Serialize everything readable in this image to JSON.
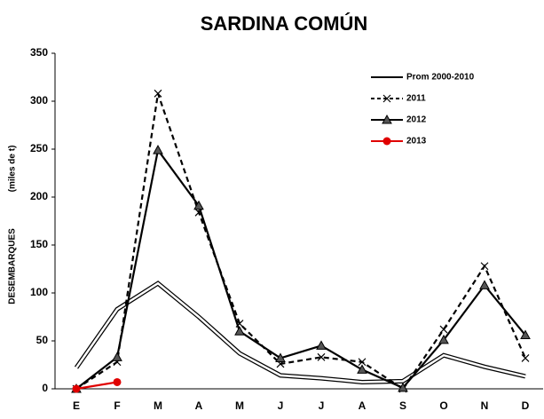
{
  "chart_data": {
    "type": "line",
    "title": "SARDINA COMÚN",
    "ylabel": "DESEMBARQUES",
    "ylabel_unit": "(miles de t)",
    "categories": [
      "E",
      "F",
      "M",
      "A",
      "M",
      "J",
      "J",
      "A",
      "S",
      "O",
      "N",
      "D"
    ],
    "ylim": [
      0,
      350
    ],
    "yticks": [
      0,
      50,
      100,
      150,
      200,
      250,
      300,
      350
    ],
    "legend": "upper right",
    "series": [
      {
        "name": "Prom 2000-2010",
        "color": "#000000",
        "style": "double",
        "marker": "none",
        "values": [
          22,
          83,
          110,
          75,
          37,
          14,
          11,
          7,
          8,
          35,
          23,
          13
        ]
      },
      {
        "name": "2011",
        "color": "#000000",
        "style": "dashed",
        "marker": "x",
        "values": [
          0,
          28,
          308,
          184,
          68,
          26,
          33,
          28,
          0,
          62,
          128,
          32
        ]
      },
      {
        "name": "2012",
        "color": "#000000",
        "style": "solid",
        "marker": "triangle",
        "values": [
          0,
          33,
          249,
          191,
          60,
          32,
          45,
          20,
          1,
          51,
          108,
          56
        ]
      },
      {
        "name": "2013",
        "color": "#e00000",
        "style": "solid",
        "marker": "circle",
        "values": [
          0,
          7,
          null,
          null,
          null,
          null,
          null,
          null,
          null,
          null,
          null,
          null
        ]
      }
    ]
  }
}
